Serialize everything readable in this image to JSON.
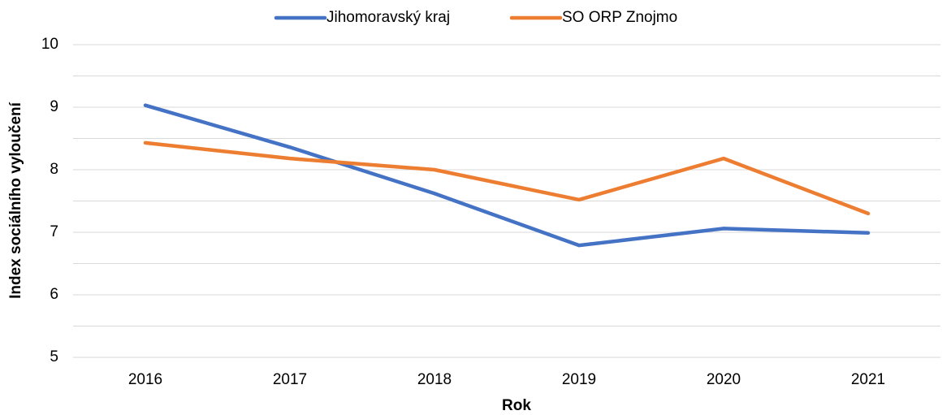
{
  "chart_data": {
    "type": "line",
    "categories": [
      "2016",
      "2017",
      "2018",
      "2019",
      "2020",
      "2021"
    ],
    "series": [
      {
        "name": "Jihomoravský kraj",
        "color": "#4472c4",
        "values": [
          9.03,
          8.36,
          7.62,
          6.79,
          7.06,
          6.99
        ]
      },
      {
        "name": "SO ORP Znojmo",
        "color": "#ed7d31",
        "values": [
          8.43,
          8.18,
          8.0,
          7.52,
          8.18,
          7.3
        ]
      }
    ],
    "x_label": "Rok",
    "y_label": "Index sociálního vyloučení",
    "ylim": [
      5,
      10
    ],
    "yticks": [
      5,
      6,
      7,
      8,
      9,
      10
    ],
    "minor_yticks": [
      5.5,
      6.5,
      7.5,
      8.5,
      9.5
    ],
    "grid": true,
    "legend": "top"
  }
}
